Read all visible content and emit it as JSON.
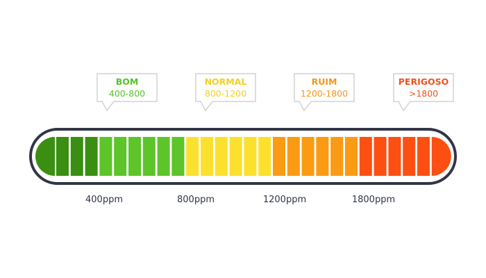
{
  "scale": {
    "levels": [
      {
        "title": "BOM",
        "range": "400-800",
        "color": "#55c32a",
        "segment_color": "#5dc42a"
      },
      {
        "title": "NORMAL",
        "range": "800-1200",
        "color": "#f2d022",
        "segment_color": "#fbe12d"
      },
      {
        "title": "RUIM",
        "range": "1200-1800",
        "color": "#f5961b",
        "segment_color": "#fb9a13"
      },
      {
        "title": "PERIGOSO",
        "range": ">1800",
        "color": "#f0521c",
        "segment_color": "#fd4f12"
      }
    ],
    "dark_green_color": "#3a8f12",
    "frame_color": "#323546",
    "ticks": [
      "400ppm",
      "800ppm",
      "1200ppm",
      "1800ppm"
    ]
  }
}
